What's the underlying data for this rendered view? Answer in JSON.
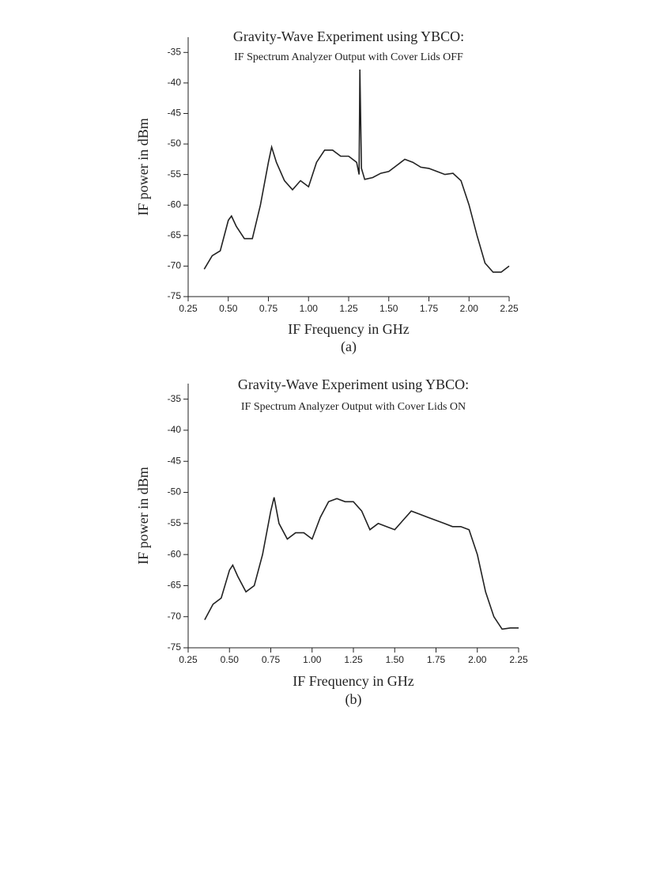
{
  "chart_data": [
    {
      "type": "line",
      "title": "Gravity-Wave Experiment using YBCO:",
      "subtitle": "IF Spectrum Analyzer Output with Cover Lids OFF",
      "xlabel": "IF Frequency in GHz",
      "ylabel": "IF power in dBm",
      "caption": "(a)",
      "x": [
        0.35,
        0.4,
        0.45,
        0.5,
        0.52,
        0.55,
        0.6,
        0.65,
        0.7,
        0.75,
        0.77,
        0.8,
        0.85,
        0.9,
        0.95,
        1.0,
        1.05,
        1.1,
        1.15,
        1.2,
        1.25,
        1.3,
        1.315,
        1.32,
        1.33,
        1.35,
        1.4,
        1.45,
        1.5,
        1.55,
        1.6,
        1.65,
        1.7,
        1.75,
        1.8,
        1.85,
        1.9,
        1.95,
        2.0,
        2.05,
        2.1,
        2.15,
        2.2,
        2.25
      ],
      "series": [
        {
          "color": "#222222",
          "values": [
            -70.5,
            -68.3,
            -67.5,
            -62.5,
            -61.8,
            -63.5,
            -65.5,
            -65.5,
            -60,
            -53,
            -50.5,
            -53,
            -56,
            -57.5,
            -56,
            -57,
            -53,
            -51,
            -51,
            -52,
            -52,
            -53,
            -55,
            -37.8,
            -54,
            -55.8,
            -55.5,
            -54.8,
            -54.5,
            -53.5,
            -52.5,
            -53,
            -53.8,
            -54,
            -54.5,
            -55,
            -54.8,
            -56,
            -60,
            -65,
            -69.5,
            -71,
            -71,
            -70
          ]
        }
      ],
      "xlim": [
        0.25,
        2.25
      ],
      "ylim": [
        -75,
        -32.5
      ],
      "xticks": [
        0.25,
        {
          "value": 0.5,
          "label": "0.50"
        },
        0.75,
        {
          "value": 1,
          "label": "1.00"
        },
        1.25,
        {
          "value": 1.5,
          "label": "1.50"
        },
        1.75,
        {
          "value": 2,
          "label": "2.00"
        },
        2.25
      ],
      "yticks": [
        -75,
        -70,
        -65,
        -60,
        -55,
        -50,
        -45,
        -40,
        -35
      ]
    },
    {
      "type": "line",
      "title": "Gravity-Wave Experiment using YBCO:",
      "subtitle": "IF Spectrum Analyzer Output with Cover Lids ON",
      "xlabel": "IF Frequency in GHz",
      "ylabel": "IF power in dBm",
      "caption": "(b)",
      "x": [
        0.35,
        0.4,
        0.45,
        0.5,
        0.52,
        0.55,
        0.6,
        0.65,
        0.7,
        0.75,
        0.77,
        0.8,
        0.85,
        0.9,
        0.95,
        1.0,
        1.05,
        1.1,
        1.15,
        1.2,
        1.25,
        1.3,
        1.35,
        1.4,
        1.45,
        1.5,
        1.55,
        1.6,
        1.65,
        1.7,
        1.75,
        1.8,
        1.85,
        1.9,
        1.95,
        2.0,
        2.05,
        2.1,
        2.15,
        2.2,
        2.25
      ],
      "series": [
        {
          "color": "#222222",
          "values": [
            -70.5,
            -68,
            -67,
            -62.5,
            -61.7,
            -63.5,
            -66,
            -65,
            -60,
            -53,
            -50.8,
            -55,
            -57.5,
            -56.5,
            -56.5,
            -57.5,
            -54,
            -51.5,
            -51,
            -51.5,
            -51.5,
            -53,
            -56,
            -55,
            -55.5,
            -56,
            -54.5,
            -53,
            -53.5,
            -54,
            -54.5,
            -55,
            -55.5,
            -55.5,
            -56,
            -60,
            -66,
            -70,
            -72,
            -71.8,
            -71.8
          ]
        }
      ],
      "xlim": [
        0.25,
        2.25
      ],
      "ylim": [
        -75,
        -32.5
      ],
      "xticks": [
        0.25,
        {
          "value": 0.5,
          "label": "0.50"
        },
        0.75,
        {
          "value": 1,
          "label": "1.00"
        },
        1.25,
        {
          "value": 1.5,
          "label": "1.50"
        },
        1.75,
        {
          "value": 2,
          "label": "2.00"
        },
        2.25
      ],
      "yticks": [
        -75,
        -70,
        -65,
        -60,
        -55,
        -50,
        -45,
        -40,
        -35
      ]
    }
  ]
}
